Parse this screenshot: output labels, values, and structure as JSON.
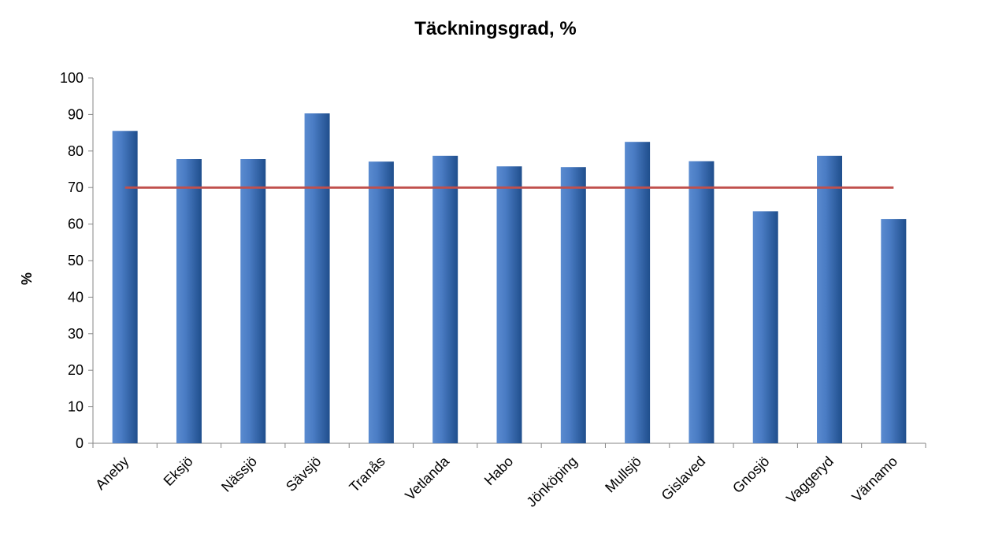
{
  "chart_data": {
    "type": "bar",
    "title": "Täckningsgrad, %",
    "xlabel": "",
    "ylabel": "%",
    "ylim": [
      0,
      100
    ],
    "yticks": [
      0,
      10,
      20,
      30,
      40,
      50,
      60,
      70,
      80,
      90,
      100
    ],
    "categories": [
      "Aneby",
      "Eksjö",
      "Nässjö",
      "Sävsjö",
      "Tranås",
      "Vetlanda",
      "Habo",
      "Jönköping",
      "Mullsjö",
      "Gislaved",
      "Gnosjö",
      "Vaggeryd",
      "Värnamo"
    ],
    "series": [
      {
        "values": [
          85.5,
          77.8,
          77.8,
          90.3,
          77.1,
          78.7,
          75.8,
          75.6,
          82.5,
          77.2,
          63.5,
          78.7,
          61.4
        ],
        "color": "#3d6fb4"
      }
    ],
    "reference_line": {
      "value": 70,
      "color": "#c0504d"
    },
    "grid": false,
    "legend": "none"
  }
}
